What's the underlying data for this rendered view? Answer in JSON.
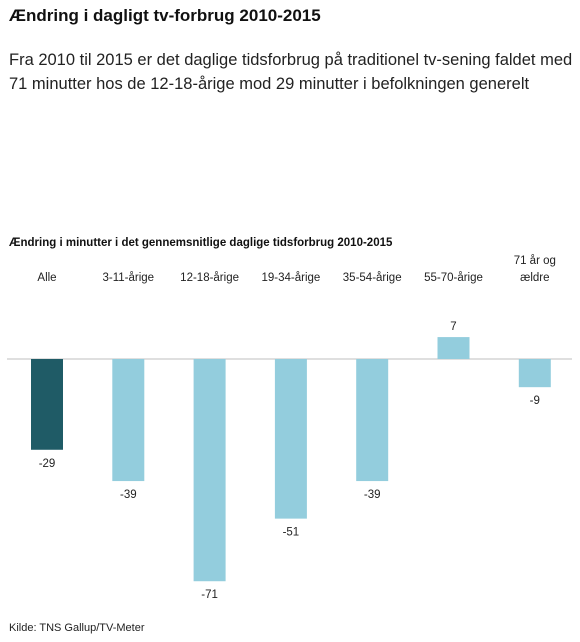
{
  "header": {
    "title": "Ændring i dagligt tv-forbrug 2010-2015",
    "subtitle": "Fra 2010 til 2015 er det daglige tidsforbrug på traditionel tv-sening faldet med 71 minutter hos de 12-18-årige mod 29 minutter i befolkningen generelt"
  },
  "chart_data": {
    "type": "bar",
    "title": "Ændring i minutter i det gennemsnitlige daglige tidsforbrug 2010-2015",
    "categories": [
      "Alle",
      "3-11-årige",
      "12-18-årige",
      "19-34-årige",
      "35-54-årige",
      "55-70-årige",
      "71 år og ældre"
    ],
    "category_lines": [
      [
        "Alle"
      ],
      [
        "3-11-årige"
      ],
      [
        "12-18-årige"
      ],
      [
        "19-34-årige"
      ],
      [
        "35-54-årige"
      ],
      [
        "55-70-årige"
      ],
      [
        "71 år og",
        "ældre"
      ]
    ],
    "values": [
      -29,
      -39,
      -71,
      -51,
      -39,
      7,
      -9
    ],
    "value_labels": [
      "-29",
      "-39",
      "-71",
      "-51",
      "-39",
      "7",
      "-9"
    ],
    "ylim": [
      -75,
      10
    ],
    "grid": false,
    "colors": {
      "highlight": "#1f5b66",
      "bar": "#93cddd",
      "axis": "#bfbfbf"
    },
    "highlight_index": 0
  },
  "footer": {
    "source": "Kilde: TNS Gallup/TV-Meter"
  }
}
